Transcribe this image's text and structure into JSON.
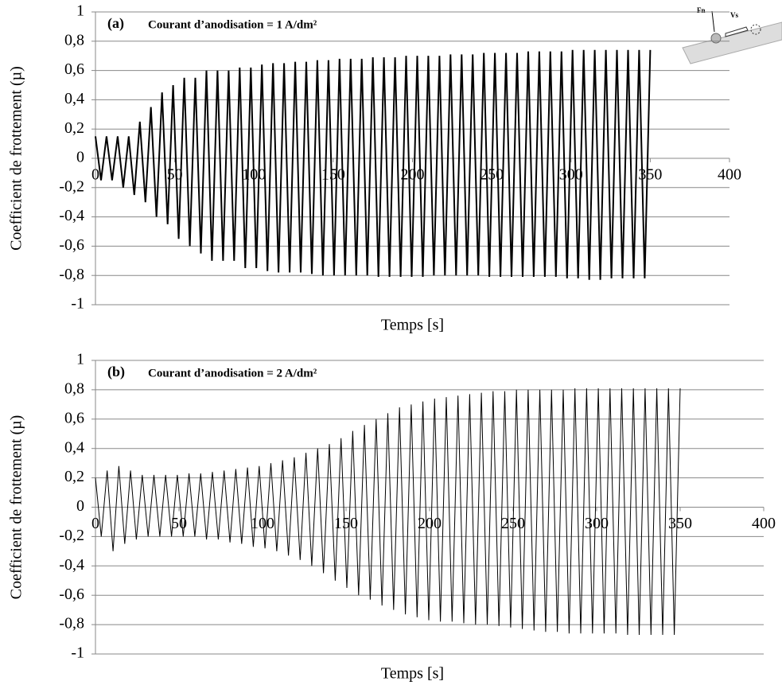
{
  "chart_data": [
    {
      "type": "line",
      "label": "(a)",
      "title": "Courant d’anodisation = 1 A/dm²",
      "x_label": "Temps [s]",
      "y_label": "Coefficient de frottement (µ)",
      "annotations": [
        "Fn",
        "Vs"
      ],
      "xlim": [
        0,
        400
      ],
      "xticks": [
        0,
        50,
        100,
        150,
        200,
        250,
        300,
        350,
        400
      ],
      "ylim": [
        -1,
        1
      ],
      "yticks": [
        -1,
        {
          "value": -0.8,
          "label": "-0,8"
        },
        {
          "value": -0.6,
          "label": "-0,6"
        },
        {
          "value": -0.4,
          "label": "-0,4"
        },
        {
          "value": -0.2,
          "label": "-0,2"
        },
        0,
        {
          "value": 0.2,
          "label": "0,2"
        },
        {
          "value": 0.4,
          "label": "0,4"
        },
        {
          "value": 0.6,
          "label": "0,6"
        },
        {
          "value": 0.8,
          "label": "0,8"
        },
        1
      ],
      "grid": true,
      "color": "#000000",
      "x": [
        0,
        3.5,
        7,
        10.5,
        14,
        17.5,
        21,
        24.5,
        28,
        31.5,
        35,
        38.5,
        42,
        45.5,
        49,
        52.5,
        56,
        59.5,
        63,
        66.5,
        70,
        73.5,
        77,
        80.5,
        84,
        87.5,
        91,
        94.5,
        98,
        101.5,
        105,
        108.5,
        112,
        115.5,
        119,
        122.5,
        126,
        129.5,
        133,
        136.5,
        140,
        143.5,
        147,
        150.5,
        154,
        157.5,
        161,
        164.5,
        168,
        171.5,
        175,
        178.5,
        182,
        185.5,
        189,
        192.5,
        196,
        199.5,
        203,
        206.5,
        210,
        213.5,
        217,
        220.5,
        224,
        227.5,
        231,
        234.5,
        238,
        241.5,
        245,
        248.5,
        252,
        255.5,
        259,
        262.5,
        266,
        269.5,
        273,
        276.5,
        280,
        283.5,
        287,
        290.5,
        294,
        297.5,
        301,
        304.5,
        308,
        311.5,
        315,
        318.5,
        322,
        325.5,
        329,
        332.5,
        336,
        339.5,
        343,
        346.5,
        350
      ],
      "values": [
        0.15,
        -0.15,
        0.15,
        -0.15,
        0.15,
        -0.2,
        0.15,
        -0.25,
        0.25,
        -0.3,
        0.35,
        -0.4,
        0.45,
        -0.45,
        0.5,
        -0.55,
        0.55,
        -0.6,
        0.55,
        -0.65,
        0.6,
        -0.7,
        0.6,
        -0.7,
        0.6,
        -0.7,
        0.62,
        -0.75,
        0.62,
        -0.75,
        0.64,
        -0.77,
        0.65,
        -0.78,
        0.65,
        -0.78,
        0.66,
        -0.78,
        0.66,
        -0.79,
        0.67,
        -0.8,
        0.67,
        -0.8,
        0.68,
        -0.8,
        0.68,
        -0.8,
        0.68,
        -0.8,
        0.69,
        -0.81,
        0.69,
        -0.81,
        0.69,
        -0.81,
        0.7,
        -0.81,
        0.7,
        -0.81,
        0.7,
        -0.8,
        0.7,
        -0.8,
        0.71,
        -0.8,
        0.71,
        -0.8,
        0.71,
        -0.8,
        0.72,
        -0.81,
        0.72,
        -0.81,
        0.72,
        -0.81,
        0.72,
        -0.81,
        0.73,
        -0.81,
        0.73,
        -0.81,
        0.73,
        -0.81,
        0.73,
        -0.82,
        0.74,
        -0.82,
        0.74,
        -0.83,
        0.74,
        -0.83,
        0.74,
        -0.82,
        0.74,
        -0.82,
        0.74,
        -0.82,
        0.74,
        -0.82,
        0.74
      ]
    },
    {
      "type": "line",
      "label": "(b)",
      "title": "Courant d’anodisation = 2 A/dm²",
      "x_label": "Temps [s]",
      "y_label": "Coefficient de frottement (µ)",
      "xlim": [
        0,
        400
      ],
      "xticks": [
        0,
        50,
        100,
        150,
        200,
        250,
        300,
        350,
        400
      ],
      "ylim": [
        -1,
        1
      ],
      "yticks": [
        -1,
        {
          "value": -0.8,
          "label": "-0,8"
        },
        {
          "value": -0.6,
          "label": "-0,6"
        },
        {
          "value": -0.4,
          "label": "-0,4"
        },
        {
          "value": -0.2,
          "label": "-0,2"
        },
        0,
        {
          "value": 0.2,
          "label": "0,2"
        },
        {
          "value": 0.4,
          "label": "0,4"
        },
        {
          "value": 0.6,
          "label": "0,6"
        },
        {
          "value": 0.8,
          "label": "0,8"
        },
        1
      ],
      "grid": true,
      "color": "#000000",
      "x": [
        0,
        3.5,
        7,
        10.5,
        14,
        17.5,
        21,
        24.5,
        28,
        31.5,
        35,
        38.5,
        42,
        45.5,
        49,
        52.5,
        56,
        59.5,
        63,
        66.5,
        70,
        73.5,
        77,
        80.5,
        84,
        87.5,
        91,
        94.5,
        98,
        101.5,
        105,
        108.5,
        112,
        115.5,
        119,
        122.5,
        126,
        129.5,
        133,
        136.5,
        140,
        143.5,
        147,
        150.5,
        154,
        157.5,
        161,
        164.5,
        168,
        171.5,
        175,
        178.5,
        182,
        185.5,
        189,
        192.5,
        196,
        199.5,
        203,
        206.5,
        210,
        213.5,
        217,
        220.5,
        224,
        227.5,
        231,
        234.5,
        238,
        241.5,
        245,
        248.5,
        252,
        255.5,
        259,
        262.5,
        266,
        269.5,
        273,
        276.5,
        280,
        283.5,
        287,
        290.5,
        294,
        297.5,
        301,
        304.5,
        308,
        311.5,
        315,
        318.5,
        322,
        325.5,
        329,
        332.5,
        336,
        339.5,
        343,
        346.5,
        350
      ],
      "values": [
        0.2,
        -0.2,
        0.25,
        -0.3,
        0.28,
        -0.25,
        0.25,
        -0.22,
        0.22,
        -0.2,
        0.22,
        -0.2,
        0.22,
        -0.2,
        0.22,
        -0.2,
        0.23,
        -0.2,
        0.23,
        -0.22,
        0.24,
        -0.22,
        0.25,
        -0.24,
        0.26,
        -0.25,
        0.27,
        -0.27,
        0.28,
        -0.28,
        0.3,
        -0.3,
        0.32,
        -0.33,
        0.34,
        -0.36,
        0.37,
        -0.4,
        0.4,
        -0.45,
        0.43,
        -0.5,
        0.47,
        -0.55,
        0.52,
        -0.6,
        0.56,
        -0.63,
        0.6,
        -0.67,
        0.64,
        -0.7,
        0.68,
        -0.73,
        0.7,
        -0.75,
        0.72,
        -0.77,
        0.74,
        -0.78,
        0.75,
        -0.78,
        0.76,
        -0.79,
        0.77,
        -0.8,
        0.78,
        -0.8,
        0.79,
        -0.81,
        0.79,
        -0.82,
        0.8,
        -0.83,
        0.8,
        -0.84,
        0.8,
        -0.85,
        0.8,
        -0.85,
        0.8,
        -0.86,
        0.81,
        -0.86,
        0.81,
        -0.86,
        0.81,
        -0.86,
        0.81,
        -0.86,
        0.81,
        -0.87,
        0.81,
        -0.87,
        0.81,
        -0.87,
        0.81,
        -0.87,
        0.81,
        -0.87,
        0.81
      ]
    }
  ]
}
